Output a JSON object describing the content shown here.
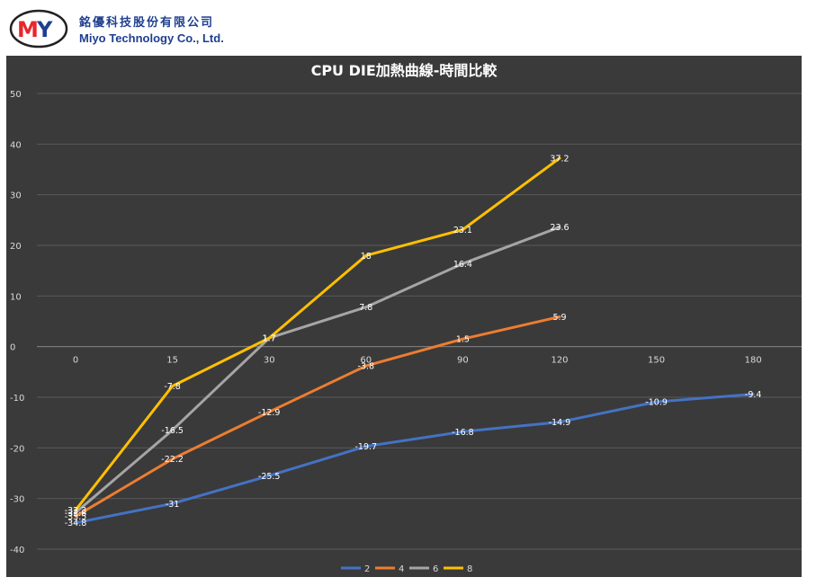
{
  "header": {
    "logo_text": "MY",
    "company_zh": "銘優科技股份有限公司",
    "company_en": "Miyo Technology Co., Ltd."
  },
  "colors": {
    "background": "#3a3a3a",
    "grid": "#595959",
    "axis_text": "#d9d9d9",
    "label_text": "#ffffff",
    "series": [
      "#4472c4",
      "#ed7d31",
      "#a5a5a5",
      "#ffc000"
    ],
    "logo_red": "#e8262b",
    "logo_blue": "#1f3f8f"
  },
  "chart_data": {
    "type": "line",
    "title": "CPU DIE加熱曲線-時間比較",
    "xlabel": "",
    "ylabel": "",
    "categories": [
      "0",
      "15",
      "30",
      "60",
      "90",
      "120",
      "150",
      "180"
    ],
    "ylim": [
      -40,
      50
    ],
    "ytick_step": 10,
    "grid": true,
    "legend_position": "bottom",
    "series": [
      {
        "name": "2",
        "values": [
          -34.8,
          -31,
          -25.5,
          -19.7,
          -16.8,
          -14.9,
          -10.9,
          -9.4
        ]
      },
      {
        "name": "4",
        "values": [
          -33.5,
          -22.2,
          -12.9,
          -3.8,
          1.5,
          5.9,
          null,
          null
        ]
      },
      {
        "name": "6",
        "values": [
          -32.8,
          -16.5,
          1.7,
          7.8,
          16.4,
          23.6,
          null,
          null
        ]
      },
      {
        "name": "8",
        "values": [
          -32.3,
          -7.8,
          1.7,
          18,
          23.1,
          37.2,
          null,
          null
        ]
      }
    ]
  }
}
